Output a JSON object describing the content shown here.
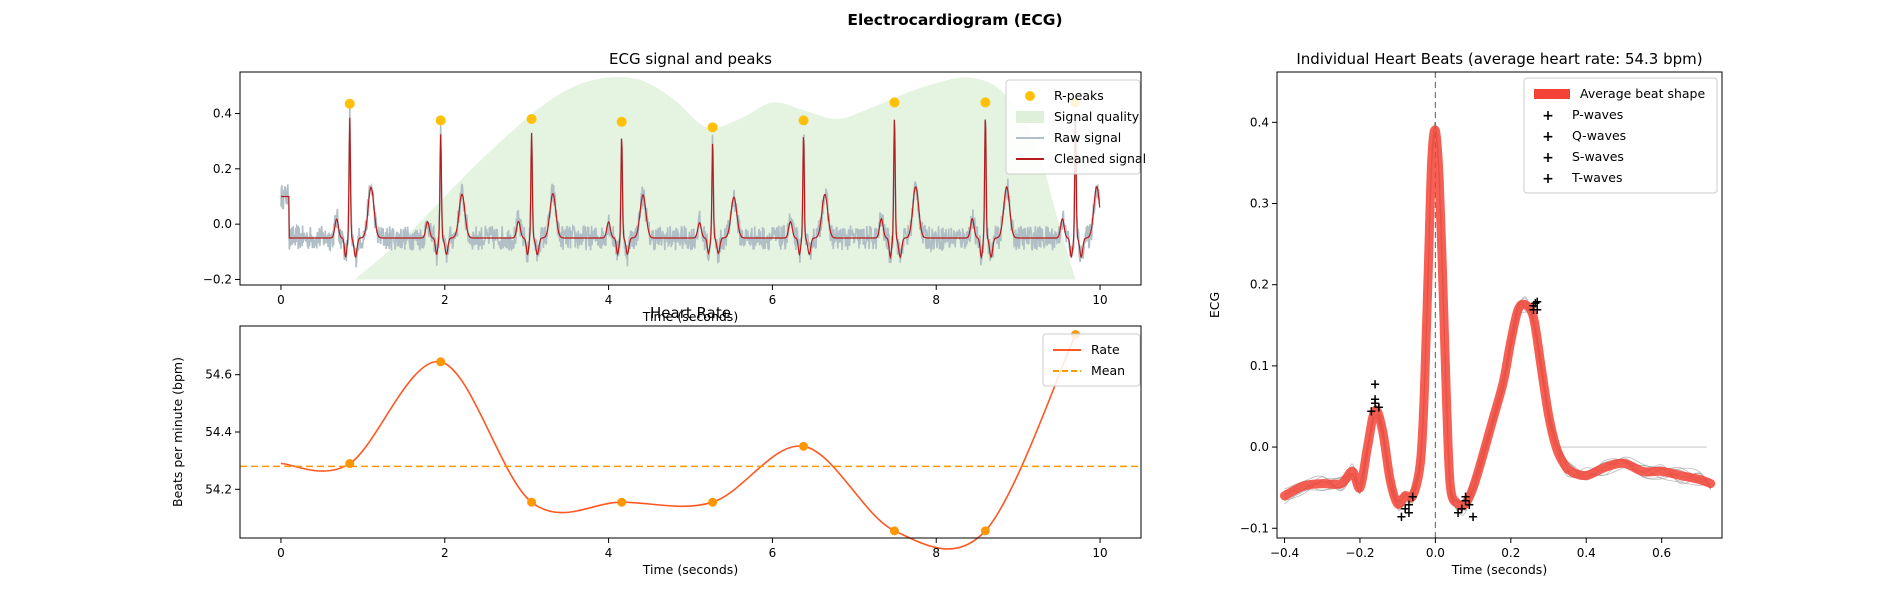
{
  "figure_title": "Electrocardiogram (ECG)",
  "chart_data": [
    {
      "type": "line",
      "title": "ECG signal and peaks",
      "xlabel": "Time (seconds)",
      "ylabel": "",
      "xlim": [
        -0.5,
        10.5
      ],
      "ylim": [
        -0.22,
        0.55
      ],
      "xticks": [
        0,
        2,
        4,
        6,
        8,
        10
      ],
      "yticks": [
        -0.2,
        0.0,
        0.2,
        0.4
      ],
      "xtick_labels": [
        "0",
        "2",
        "4",
        "6",
        "8",
        "10"
      ],
      "ytick_labels": [
        "−0.2",
        "0.0",
        "0.2",
        "0.4"
      ],
      "grid": false,
      "legend_position": "top-right",
      "legend": [
        {
          "name": "R-peaks",
          "color": "#FFC107",
          "kind": "marker"
        },
        {
          "name": "Signal quality",
          "color": "#DFF0DA",
          "kind": "patch"
        },
        {
          "name": "Raw signal",
          "color": "#B0BEC5",
          "kind": "line"
        },
        {
          "name": "Cleaned signal",
          "color": "#B71C1C",
          "kind": "line"
        }
      ],
      "r_peaks": {
        "x": [
          0.84,
          1.95,
          3.06,
          4.16,
          5.27,
          6.38,
          7.49,
          8.6,
          9.7
        ],
        "y": [
          0.435,
          0.375,
          0.38,
          0.37,
          0.35,
          0.375,
          0.44,
          0.44,
          0.44
        ]
      },
      "signal_quality": {
        "x": [
          0.9,
          1.5,
          2.0,
          2.4,
          2.8,
          3.2,
          3.6,
          4.0,
          4.4,
          4.8,
          5.2,
          5.6,
          6.0,
          6.4,
          6.8,
          7.2,
          7.6,
          8.0,
          8.4,
          8.8,
          9.2,
          9.5,
          9.7
        ],
        "y": [
          -0.2,
          -0.05,
          0.1,
          0.22,
          0.33,
          0.43,
          0.5,
          0.53,
          0.52,
          0.45,
          0.35,
          0.38,
          0.44,
          0.41,
          0.38,
          0.42,
          0.47,
          0.51,
          0.53,
          0.48,
          0.3,
          0.0,
          -0.2
        ]
      }
    },
    {
      "type": "line",
      "title": "Heart Rate",
      "xlabel": "Time (seconds)",
      "ylabel": "Beats per minute (bpm)",
      "xlim": [
        -0.5,
        10.5
      ],
      "ylim": [
        54.03,
        54.77
      ],
      "xticks": [
        0,
        2,
        4,
        6,
        8,
        10
      ],
      "yticks": [
        54.2,
        54.4,
        54.6
      ],
      "xtick_labels": [
        "0",
        "2",
        "4",
        "6",
        "8",
        "10"
      ],
      "ytick_labels": [
        "54.2",
        "54.4",
        "54.6"
      ],
      "grid": false,
      "legend_position": "top-right",
      "legend": [
        {
          "name": "Rate",
          "color": "#FF5722",
          "kind": "line"
        },
        {
          "name": "Mean",
          "color": "#FF9800",
          "kind": "dashed"
        }
      ],
      "rate_points": {
        "x": [
          0.0,
          0.84,
          1.95,
          3.06,
          4.16,
          5.27,
          6.38,
          7.49,
          8.6,
          9.7
        ],
        "y": [
          54.29,
          54.29,
          54.645,
          54.155,
          54.155,
          54.155,
          54.35,
          54.055,
          54.055,
          54.74
        ]
      },
      "mean": 54.28
    },
    {
      "type": "line",
      "title": "Individual Heart Beats (average heart rate: 54.3 bpm)",
      "xlabel": "Time (seconds)",
      "ylabel": "ECG",
      "xlim": [
        -0.42,
        0.76
      ],
      "ylim": [
        -0.112,
        0.462
      ],
      "xticks": [
        -0.4,
        -0.2,
        0.0,
        0.2,
        0.4,
        0.6
      ],
      "yticks": [
        -0.1,
        0.0,
        0.1,
        0.2,
        0.3,
        0.4
      ],
      "xtick_labels": [
        "−0.4",
        "−0.2",
        "0.0",
        "0.2",
        "0.4",
        "0.6"
      ],
      "ytick_labels": [
        "−0.1",
        "0.0",
        "0.1",
        "0.2",
        "0.3",
        "0.4"
      ],
      "grid": false,
      "legend_position": "top-right",
      "legend": [
        {
          "name": "Average beat shape",
          "color": "#F44336",
          "kind": "thick"
        },
        {
          "name": "P-waves",
          "color": "#3949AB",
          "kind": "plus"
        },
        {
          "name": "Q-waves",
          "color": "#1E88E5",
          "kind": "plus"
        },
        {
          "name": "S-waves",
          "color": "#039BE5",
          "kind": "plus"
        },
        {
          "name": "T-waves",
          "color": "#00ACC1",
          "kind": "plus"
        }
      ],
      "average_beat": {
        "x": [
          -0.4,
          -0.35,
          -0.3,
          -0.25,
          -0.22,
          -0.2,
          -0.18,
          -0.16,
          -0.14,
          -0.12,
          -0.1,
          -0.08,
          -0.06,
          -0.04,
          -0.03,
          -0.02,
          -0.01,
          0.0,
          0.01,
          0.02,
          0.03,
          0.04,
          0.06,
          0.08,
          0.1,
          0.12,
          0.15,
          0.18,
          0.2,
          0.22,
          0.24,
          0.26,
          0.28,
          0.3,
          0.32,
          0.34,
          0.36,
          0.4,
          0.45,
          0.5,
          0.55,
          0.6,
          0.65,
          0.7,
          0.73
        ],
        "y": [
          -0.06,
          -0.048,
          -0.045,
          -0.045,
          -0.03,
          -0.05,
          0.0,
          0.045,
          0.02,
          -0.04,
          -0.07,
          -0.06,
          -0.06,
          -0.02,
          0.06,
          0.2,
          0.35,
          0.39,
          0.33,
          0.2,
          0.05,
          -0.05,
          -0.07,
          -0.07,
          -0.05,
          -0.02,
          0.03,
          0.08,
          0.13,
          0.17,
          0.175,
          0.16,
          0.1,
          0.04,
          0.0,
          -0.02,
          -0.03,
          -0.035,
          -0.025,
          -0.02,
          -0.03,
          -0.03,
          -0.035,
          -0.04,
          -0.045
        ]
      },
      "p_waves": {
        "x": [
          -0.17,
          -0.16,
          -0.16,
          -0.15,
          -0.15,
          -0.16
        ],
        "y": [
          0.045,
          0.055,
          0.06,
          0.05,
          0.05,
          0.078
        ]
      },
      "q_waves": {
        "x": [
          -0.08,
          -0.07,
          -0.06,
          -0.09,
          -0.07
        ],
        "y": [
          -0.075,
          -0.07,
          -0.06,
          -0.085,
          -0.08
        ]
      },
      "s_waves": {
        "x": [
          0.07,
          0.08,
          0.09,
          0.1,
          0.08,
          0.06
        ],
        "y": [
          -0.075,
          -0.065,
          -0.07,
          -0.085,
          -0.06,
          -0.08
        ]
      },
      "t_waves": {
        "x": [
          0.26,
          0.27,
          0.26,
          0.27,
          0.265
        ],
        "y": [
          0.17,
          0.18,
          0.175,
          0.17,
          0.178
        ]
      }
    }
  ]
}
